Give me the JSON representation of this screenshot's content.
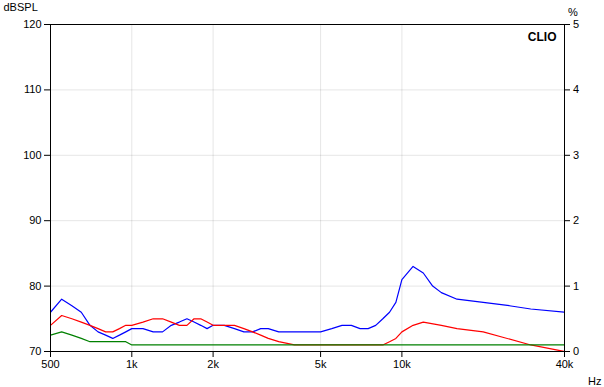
{
  "chart_data": {
    "type": "line",
    "xlabel": "Hz",
    "ylabel": "dBSPL",
    "y2label": "%",
    "annotations": [
      "CLIO"
    ],
    "log": "x",
    "grid": true,
    "xlim": [
      500,
      40000
    ],
    "xticks": [
      500,
      {
        "value": 1000,
        "label": "1k"
      },
      {
        "value": 2000,
        "label": "2k"
      },
      {
        "value": 5000,
        "label": "5k"
      },
      {
        "value": 10000,
        "label": "10k"
      },
      {
        "value": 40000,
        "label": "40k"
      }
    ],
    "ylim": [
      70,
      120
    ],
    "yticks": [
      70,
      80,
      90,
      100,
      110,
      120
    ],
    "y2lim": [
      0,
      5
    ],
    "y2ticks": [
      0,
      1,
      2,
      3,
      4,
      5
    ],
    "series": [
      {
        "color": "#0000ff",
        "x": [
          500,
          550,
          600,
          650,
          700,
          750,
          800,
          850,
          900,
          950,
          1000,
          1100,
          1200,
          1300,
          1400,
          1500,
          1600,
          1700,
          1800,
          1900,
          2000,
          2200,
          2400,
          2600,
          2800,
          3000,
          3200,
          3500,
          4000,
          4500,
          5000,
          5500,
          6000,
          6500,
          7000,
          7500,
          8000,
          8500,
          9000,
          9500,
          10000,
          11000,
          12000,
          13000,
          14000,
          16000,
          20000,
          25000,
          30000,
          40000
        ],
        "values": [
          76,
          78,
          77,
          76,
          74,
          73,
          72.5,
          72,
          72.5,
          73,
          73.5,
          73.5,
          73,
          73,
          74,
          74.5,
          75,
          74.5,
          74,
          73.5,
          74,
          74,
          73.5,
          73,
          73,
          73.5,
          73.5,
          73,
          73,
          73,
          73,
          73.5,
          74,
          74,
          73.5,
          73.5,
          74,
          75,
          76,
          77.5,
          81,
          83,
          82,
          80,
          79,
          78,
          77.5,
          77,
          76.5,
          76
        ]
      },
      {
        "color": "#ff0000",
        "x": [
          500,
          550,
          600,
          650,
          700,
          750,
          800,
          850,
          900,
          950,
          1000,
          1100,
          1200,
          1300,
          1400,
          1500,
          1600,
          1700,
          1800,
          1900,
          2000,
          2200,
          2400,
          2600,
          2800,
          3000,
          3200,
          3500,
          4000,
          4500,
          5000,
          5500,
          6000,
          6500,
          7000,
          7500,
          8000,
          8500,
          9000,
          9500,
          10000,
          11000,
          12000,
          14000,
          16000,
          20000,
          30000,
          40000
        ],
        "values": [
          74,
          75.5,
          75,
          74.5,
          74,
          73.5,
          73,
          73,
          73.5,
          74,
          74,
          74.5,
          75,
          75,
          74.5,
          74,
          74,
          75,
          75,
          74.5,
          74,
          74,
          74,
          73.5,
          73,
          72.5,
          72,
          71.5,
          71,
          71,
          71,
          71,
          71,
          71,
          71,
          71,
          71,
          71,
          71.5,
          72,
          73,
          74,
          74.5,
          74,
          73.5,
          73,
          71,
          70
        ]
      },
      {
        "color": "#008000",
        "x": [
          500,
          550,
          600,
          650,
          700,
          750,
          800,
          850,
          900,
          950,
          1000,
          1100,
          1200,
          1300,
          1400,
          1500,
          1600,
          1700,
          1800,
          1900,
          2000,
          2200,
          2400,
          2600,
          2800,
          3000,
          3200,
          3500,
          4000,
          4500,
          5000,
          5500,
          6000,
          6500,
          7000,
          7500,
          8000,
          10000,
          12000,
          16000,
          20000,
          30000,
          40000
        ],
        "values": [
          72.5,
          73,
          72.5,
          72,
          71.5,
          71.5,
          71.5,
          71.5,
          71.5,
          71.5,
          71,
          71,
          71,
          71,
          71,
          71,
          71,
          71,
          71,
          71,
          71,
          71,
          71,
          71,
          71,
          71,
          71,
          71,
          71,
          71,
          71,
          71,
          71,
          71,
          71,
          71,
          71,
          71,
          71,
          71,
          71,
          71,
          71
        ]
      }
    ]
  }
}
